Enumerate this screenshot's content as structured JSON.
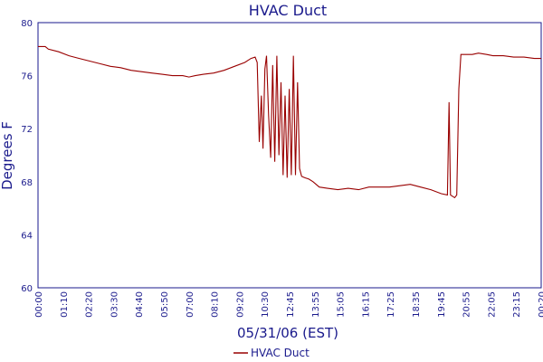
{
  "chart_data": {
    "type": "line",
    "title": "HVAC Duct",
    "xlabel": "05/31/06 (EST)",
    "ylabel": "Degrees F",
    "ylim": [
      60,
      80
    ],
    "yticks": [
      60,
      64,
      68,
      72,
      76,
      80
    ],
    "xlim": [
      "00:00",
      "00:20"
    ],
    "xticks": [
      "00:00",
      "01:10",
      "02:20",
      "03:30",
      "04:40",
      "05:50",
      "07:00",
      "08:10",
      "09:20",
      "10:30",
      "12:45",
      "13:55",
      "15:05",
      "16:15",
      "17:25",
      "18:35",
      "19:45",
      "20:55",
      "22:05",
      "23:15",
      "00:20"
    ],
    "grid": true,
    "legend_position": "bottom-center",
    "series": [
      {
        "name": "HVAC Duct",
        "color": "#990000",
        "points": [
          [
            0.0,
            78.2
          ],
          [
            0.35,
            78.2
          ],
          [
            0.5,
            78.0
          ],
          [
            1.0,
            77.8
          ],
          [
            1.5,
            77.5
          ],
          [
            2.0,
            77.3
          ],
          [
            2.5,
            77.1
          ],
          [
            3.0,
            76.9
          ],
          [
            3.5,
            76.7
          ],
          [
            4.0,
            76.6
          ],
          [
            4.5,
            76.4
          ],
          [
            5.0,
            76.3
          ],
          [
            5.5,
            76.2
          ],
          [
            6.0,
            76.1
          ],
          [
            6.5,
            76.0
          ],
          [
            7.0,
            76.0
          ],
          [
            7.3,
            75.9
          ],
          [
            7.6,
            76.0
          ],
          [
            8.0,
            76.1
          ],
          [
            8.5,
            76.2
          ],
          [
            9.0,
            76.4
          ],
          [
            9.5,
            76.7
          ],
          [
            10.0,
            77.0
          ],
          [
            10.3,
            77.3
          ],
          [
            10.5,
            77.4
          ],
          [
            10.6,
            77.0
          ],
          [
            10.7,
            71.0
          ],
          [
            10.8,
            74.5
          ],
          [
            10.88,
            70.5
          ],
          [
            10.97,
            76.5
          ],
          [
            11.05,
            77.5
          ],
          [
            11.15,
            73.0
          ],
          [
            11.25,
            69.8
          ],
          [
            11.35,
            76.8
          ],
          [
            11.45,
            69.5
          ],
          [
            11.55,
            77.5
          ],
          [
            11.65,
            70.0
          ],
          [
            11.75,
            75.5
          ],
          [
            11.85,
            68.5
          ],
          [
            11.95,
            74.5
          ],
          [
            12.05,
            68.3
          ],
          [
            12.15,
            75.0
          ],
          [
            12.25,
            68.5
          ],
          [
            12.35,
            77.5
          ],
          [
            12.45,
            68.5
          ],
          [
            12.55,
            75.5
          ],
          [
            12.65,
            69.0
          ],
          [
            12.75,
            68.4
          ],
          [
            12.9,
            68.3
          ],
          [
            13.1,
            68.2
          ],
          [
            13.3,
            68.0
          ],
          [
            13.6,
            67.6
          ],
          [
            14.0,
            67.5
          ],
          [
            14.5,
            67.4
          ],
          [
            15.0,
            67.5
          ],
          [
            15.5,
            67.4
          ],
          [
            16.0,
            67.6
          ],
          [
            16.5,
            67.6
          ],
          [
            17.0,
            67.6
          ],
          [
            17.5,
            67.7
          ],
          [
            18.0,
            67.8
          ],
          [
            18.5,
            67.6
          ],
          [
            19.0,
            67.4
          ],
          [
            19.5,
            67.1
          ],
          [
            19.8,
            67.0
          ],
          [
            19.88,
            74.0
          ],
          [
            19.95,
            67.0
          ],
          [
            20.05,
            66.9
          ],
          [
            20.15,
            66.8
          ],
          [
            20.25,
            67.0
          ],
          [
            20.35,
            75.0
          ],
          [
            20.45,
            77.6
          ],
          [
            20.6,
            77.6
          ],
          [
            21.0,
            77.6
          ],
          [
            21.3,
            77.7
          ],
          [
            21.7,
            77.6
          ],
          [
            22.0,
            77.5
          ],
          [
            22.5,
            77.5
          ],
          [
            23.0,
            77.4
          ],
          [
            23.5,
            77.4
          ],
          [
            24.0,
            77.3
          ],
          [
            24.33,
            77.3
          ]
        ]
      }
    ]
  }
}
